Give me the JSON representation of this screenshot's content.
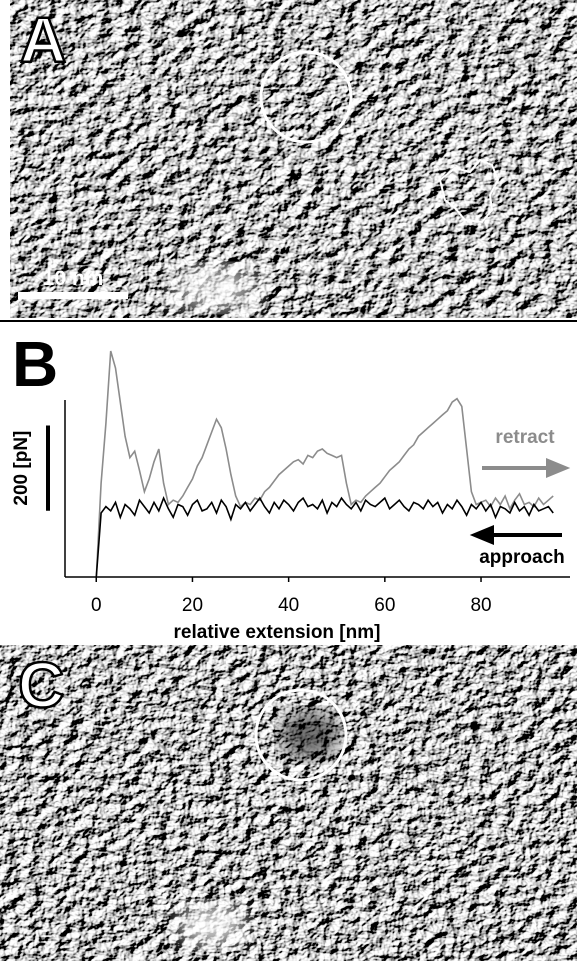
{
  "panels": {
    "a": {
      "label": "A",
      "scale_bar": "10 nm"
    },
    "b": {
      "label": "B"
    },
    "c": {
      "label": "C"
    }
  },
  "chart_data": {
    "type": "line",
    "x_label": "relative extension [nm]",
    "x": [
      0,
      1,
      2,
      3,
      4,
      5,
      6,
      7,
      8,
      9,
      10,
      11,
      12,
      13,
      14,
      15,
      16,
      17,
      18,
      19,
      20,
      21,
      22,
      23,
      24,
      25,
      26,
      27,
      28,
      29,
      30,
      31,
      32,
      33,
      34,
      35,
      36,
      37,
      38,
      39,
      40,
      41,
      42,
      43,
      44,
      45,
      46,
      47,
      48,
      49,
      50,
      51,
      52,
      53,
      54,
      55,
      56,
      57,
      58,
      59,
      60,
      61,
      62,
      63,
      64,
      65,
      66,
      67,
      68,
      69,
      70,
      71,
      72,
      73,
      74,
      75,
      76,
      77,
      78,
      79,
      80,
      81,
      82,
      83,
      84,
      85,
      86,
      87,
      88,
      89,
      90,
      91,
      92,
      93,
      94,
      95
    ],
    "series": [
      {
        "name": "retract",
        "color": "#8c8c8c",
        "values": [
          -160,
          60,
          200,
          370,
          330,
          250,
          170,
          120,
          135,
          90,
          40,
          70,
          110,
          140,
          60,
          10,
          20,
          15,
          30,
          50,
          70,
          100,
          120,
          150,
          180,
          210,
          190,
          140,
          80,
          30,
          5,
          15,
          10,
          25,
          20,
          40,
          50,
          65,
          80,
          90,
          100,
          110,
          115,
          105,
          125,
          120,
          135,
          140,
          130,
          125,
          120,
          125,
          60,
          10,
          20,
          15,
          30,
          40,
          50,
          60,
          75,
          90,
          100,
          110,
          125,
          140,
          150,
          170,
          180,
          190,
          200,
          210,
          220,
          230,
          250,
          258,
          240,
          140,
          40,
          10,
          15,
          20,
          5,
          25,
          10,
          30,
          0,
          20,
          35,
          10,
          15,
          5,
          25,
          10,
          20,
          30
        ]
      },
      {
        "name": "approach",
        "color": "#000000",
        "values": [
          -160,
          -10,
          5,
          -5,
          15,
          -20,
          10,
          0,
          -15,
          20,
          5,
          -10,
          15,
          -5,
          25,
          0,
          -20,
          10,
          5,
          -15,
          10,
          20,
          -5,
          0,
          15,
          -10,
          20,
          5,
          -25,
          10,
          0,
          15,
          -5,
          10,
          25,
          5,
          -10,
          15,
          0,
          20,
          10,
          -5,
          15,
          25,
          5,
          10,
          0,
          20,
          -10,
          15,
          5,
          25,
          10,
          0,
          15,
          -5,
          20,
          10,
          5,
          15,
          25,
          0,
          10,
          20,
          5,
          -5,
          15,
          10,
          0,
          20,
          5,
          15,
          -10,
          10,
          0,
          20,
          5,
          -15,
          10,
          0,
          15,
          -5,
          10,
          -20,
          5,
          0,
          -10,
          15,
          -5,
          5,
          -15,
          10,
          -5,
          0,
          5,
          -10
        ]
      }
    ],
    "xlim": [
      -6.5,
      98.5
    ],
    "xticks": [
      0,
      20,
      40,
      60,
      80
    ],
    "ylim": [
      -160,
      255
    ],
    "scale_bar": {
      "value": 200,
      "label": "200 [pN]"
    }
  }
}
